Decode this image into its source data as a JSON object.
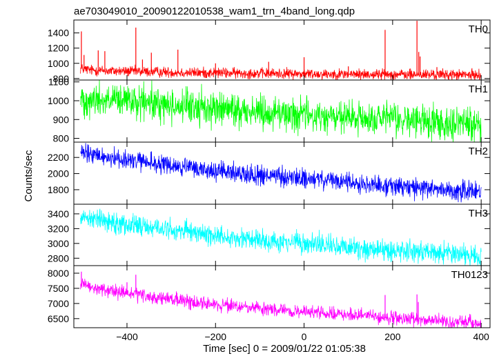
{
  "chart_data": {
    "type": "line",
    "title": "ae703049010_20090122010538_wam1_trn_4band_long.qdp",
    "xlabel": "Time [sec] 0 = 2009/01/22 01:05:38",
    "ylabel": "Counts/sec",
    "xlim": [
      -520,
      420
    ],
    "x_ticks": [
      -400,
      -200,
      0,
      200,
      400
    ],
    "x_tick_labels": [
      "−400",
      "−200",
      "0",
      "200",
      "400"
    ],
    "grid": false,
    "panels": [
      {
        "name": "TH0",
        "color": "#ff0000",
        "ylim": [
          780,
          1570
        ],
        "y_ticks": [
          800,
          1000,
          1200,
          1400
        ],
        "x": [
          -505,
          -480,
          -440,
          -400,
          -360,
          -320,
          -280,
          -240,
          -200,
          -160,
          -120,
          -80,
          -40,
          0,
          40,
          80,
          120,
          160,
          200,
          240,
          280,
          320,
          360,
          400
        ],
        "values": [
          930,
          910,
          900,
          895,
          890,
          885,
          880,
          875,
          875,
          870,
          870,
          865,
          865,
          860,
          860,
          858,
          855,
          855,
          855,
          850,
          850,
          850,
          848,
          845
        ],
        "noise": 35,
        "spikes": [
          {
            "x": -503,
            "y": 1420
          },
          {
            "x": -497,
            "y": 1110
          },
          {
            "x": -465,
            "y": 1170
          },
          {
            "x": -450,
            "y": 1160
          },
          {
            "x": -380,
            "y": 1470
          },
          {
            "x": -365,
            "y": 1050
          },
          {
            "x": -345,
            "y": 1140
          },
          {
            "x": -285,
            "y": 1180
          },
          {
            "x": -200,
            "y": 1000
          },
          {
            "x": -80,
            "y": 1020
          },
          {
            "x": 0,
            "y": 1080
          },
          {
            "x": 100,
            "y": 960
          },
          {
            "x": 183,
            "y": 1440
          },
          {
            "x": 255,
            "y": 1560
          },
          {
            "x": 259,
            "y": 1150
          },
          {
            "x": 262,
            "y": 1090
          },
          {
            "x": 300,
            "y": 950
          }
        ]
      },
      {
        "name": "TH1",
        "color": "#00ff00",
        "ylim": [
          780,
          1110
        ],
        "y_ticks": [
          800,
          900,
          1000,
          1100
        ],
        "x": [
          -505,
          -480,
          -440,
          -400,
          -360,
          -320,
          -280,
          -240,
          -200,
          -160,
          -120,
          -80,
          -40,
          0,
          40,
          80,
          120,
          160,
          200,
          240,
          280,
          320,
          360,
          400
        ],
        "values": [
          1010,
          1005,
          1000,
          995,
          985,
          980,
          970,
          965,
          960,
          950,
          945,
          940,
          930,
          925,
          915,
          910,
          905,
          900,
          900,
          895,
          890,
          885,
          880,
          875
        ],
        "noise": 45,
        "spikes": []
      },
      {
        "name": "TH2",
        "color": "#0000ff",
        "ylim": [
          1620,
          2390
        ],
        "y_ticks": [
          1800,
          2000,
          2200
        ],
        "x": [
          -505,
          -480,
          -440,
          -400,
          -360,
          -320,
          -280,
          -240,
          -200,
          -160,
          -120,
          -80,
          -40,
          0,
          40,
          80,
          120,
          160,
          200,
          240,
          280,
          320,
          360,
          400
        ],
        "values": [
          2250,
          2230,
          2200,
          2170,
          2140,
          2110,
          2080,
          2060,
          2030,
          2010,
          1990,
          1970,
          1950,
          1935,
          1920,
          1900,
          1880,
          1860,
          1845,
          1830,
          1815,
          1800,
          1785,
          1770
        ],
        "noise": 60,
        "spikes": []
      },
      {
        "name": "TH3",
        "color": "#00ffff",
        "ylim": [
          2700,
          3530
        ],
        "y_ticks": [
          2800,
          3000,
          3200,
          3400
        ],
        "x": [
          -505,
          -480,
          -440,
          -400,
          -360,
          -320,
          -280,
          -240,
          -200,
          -160,
          -120,
          -80,
          -40,
          0,
          40,
          80,
          120,
          160,
          200,
          240,
          280,
          320,
          360,
          400
        ],
        "values": [
          3380,
          3340,
          3300,
          3260,
          3230,
          3200,
          3170,
          3140,
          3110,
          3080,
          3060,
          3040,
          3020,
          3000,
          2980,
          2960,
          2940,
          2920,
          2910,
          2900,
          2890,
          2870,
          2860,
          2840
        ],
        "noise": 70,
        "spikes": []
      },
      {
        "name": "TH0123",
        "color": "#ff00ff",
        "ylim": [
          6200,
          8250
        ],
        "y_ticks": [
          6500,
          7000,
          7500,
          8000
        ],
        "x": [
          -505,
          -480,
          -440,
          -400,
          -360,
          -320,
          -280,
          -240,
          -200,
          -160,
          -120,
          -80,
          -40,
          0,
          40,
          80,
          120,
          160,
          200,
          240,
          280,
          320,
          360,
          400
        ],
        "values": [
          7620,
          7520,
          7420,
          7330,
          7250,
          7160,
          7100,
          7030,
          6970,
          6900,
          6850,
          6800,
          6760,
          6720,
          6680,
          6640,
          6600,
          6560,
          6520,
          6480,
          6440,
          6400,
          6360,
          6320
        ],
        "noise": 110,
        "spikes": [
          {
            "x": -503,
            "y": 8050
          },
          {
            "x": -380,
            "y": 7950
          },
          {
            "x": -400,
            "y": 7700
          },
          {
            "x": 183,
            "y": 7280
          },
          {
            "x": 255,
            "y": 7300
          },
          {
            "x": 258,
            "y": 7050
          }
        ]
      }
    ]
  }
}
